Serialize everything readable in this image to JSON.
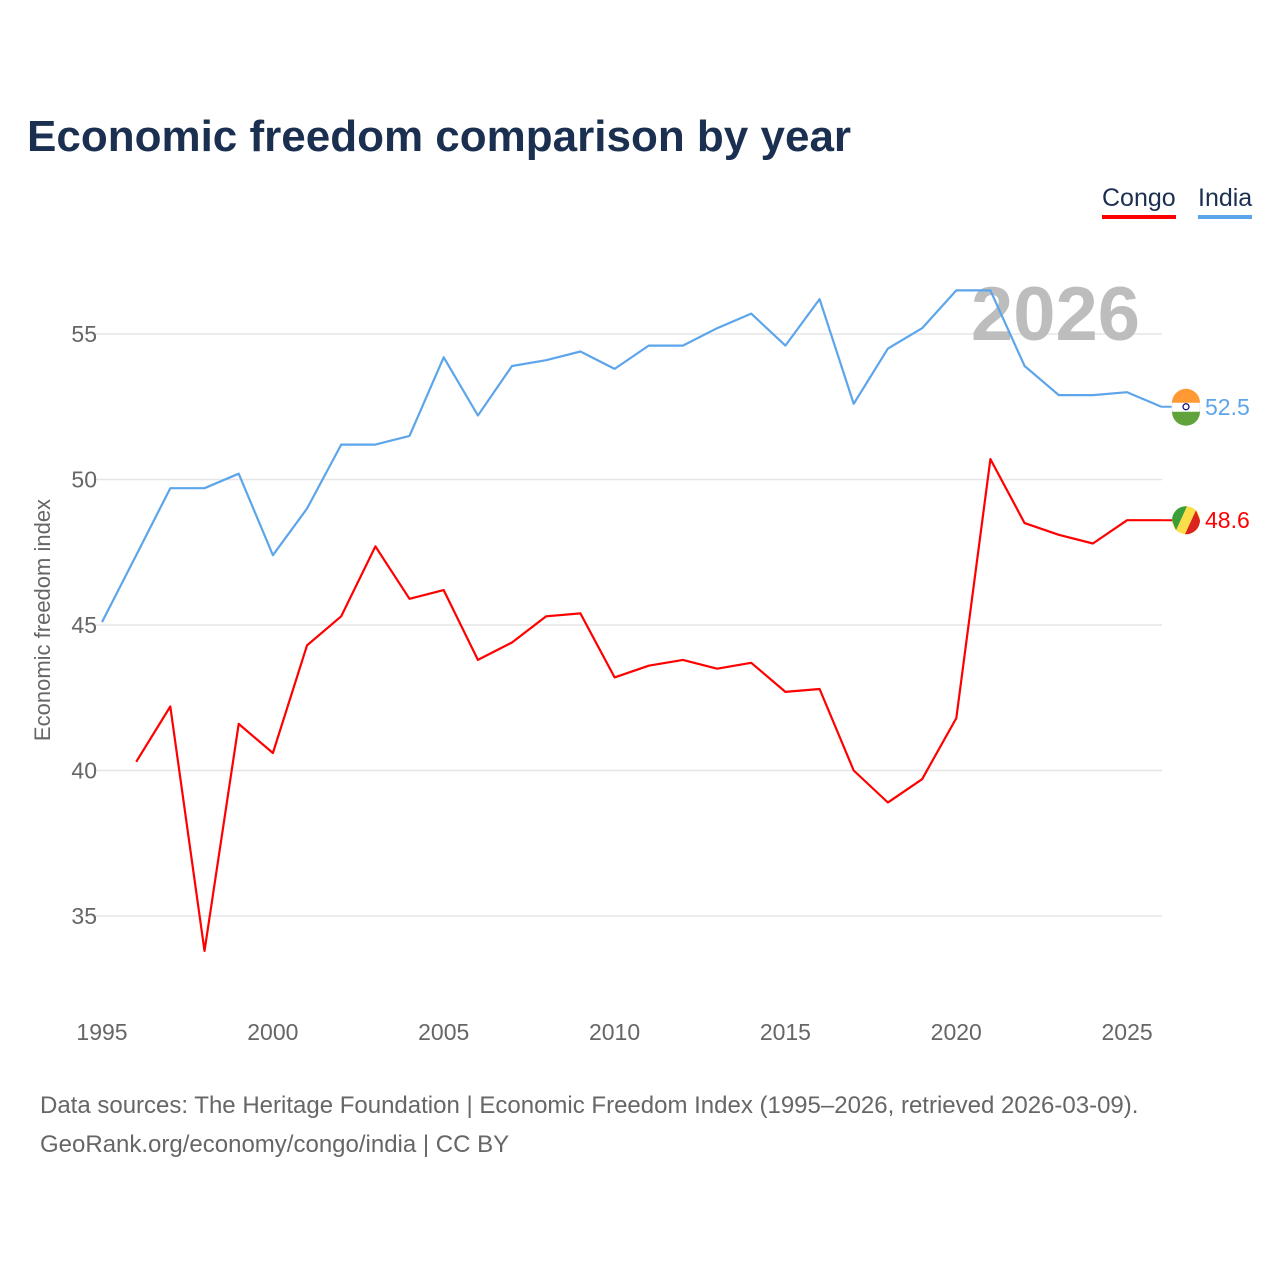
{
  "title": "Economic freedom comparison by year",
  "legend": [
    "Congo",
    "India"
  ],
  "source_line1": "Data sources: The Heritage Foundation | Economic Freedom Index (1995–2026, retrieved 2026-03-09).",
  "source_line2": "GeoRank.org/economy/congo/india | CC BY",
  "chart_data": {
    "type": "line",
    "title": "Economic freedom comparison by year",
    "xlabel": "",
    "ylabel": "Economic freedom index",
    "xlim": [
      1995,
      2026
    ],
    "ylim": [
      32.5,
      57.5
    ],
    "xticks": [
      1995,
      2000,
      2005,
      2010,
      2015,
      2020,
      2025
    ],
    "yticks": [
      35,
      40,
      45,
      50,
      55
    ],
    "grid": true,
    "legend_position": "top-right",
    "year_watermark": "2026",
    "series": [
      {
        "name": "Congo",
        "color": "#ff0000",
        "end_label": "48.6",
        "x": [
          1996,
          1997,
          1998,
          1999,
          2000,
          2001,
          2002,
          2003,
          2004,
          2005,
          2006,
          2007,
          2008,
          2009,
          2010,
          2011,
          2012,
          2013,
          2014,
          2015,
          2016,
          2017,
          2018,
          2019,
          2020,
          2021,
          2022,
          2023,
          2024,
          2025,
          2026
        ],
        "values": [
          40.3,
          42.2,
          33.8,
          41.6,
          40.6,
          44.3,
          45.3,
          47.7,
          45.9,
          46.2,
          43.8,
          44.4,
          45.3,
          45.4,
          43.2,
          43.6,
          43.8,
          43.5,
          43.7,
          42.7,
          42.8,
          40.0,
          38.9,
          39.7,
          41.8,
          50.7,
          48.5,
          48.1,
          47.8,
          48.6,
          48.6
        ]
      },
      {
        "name": "India",
        "color": "#5da5ea",
        "end_label": "52.5",
        "x": [
          1995,
          1996,
          1997,
          1998,
          1999,
          2000,
          2001,
          2002,
          2003,
          2004,
          2005,
          2006,
          2007,
          2008,
          2009,
          2010,
          2011,
          2012,
          2013,
          2014,
          2015,
          2016,
          2017,
          2018,
          2019,
          2020,
          2021,
          2022,
          2023,
          2024,
          2025,
          2026
        ],
        "values": [
          45.1,
          47.4,
          49.7,
          49.7,
          50.2,
          47.4,
          49.0,
          51.2,
          51.2,
          51.5,
          54.2,
          52.2,
          53.9,
          54.1,
          54.4,
          53.8,
          54.6,
          54.6,
          55.2,
          55.7,
          54.6,
          56.2,
          52.6,
          54.5,
          55.2,
          56.5,
          56.5,
          53.9,
          52.9,
          52.9,
          53.0,
          52.5
        ]
      }
    ]
  }
}
